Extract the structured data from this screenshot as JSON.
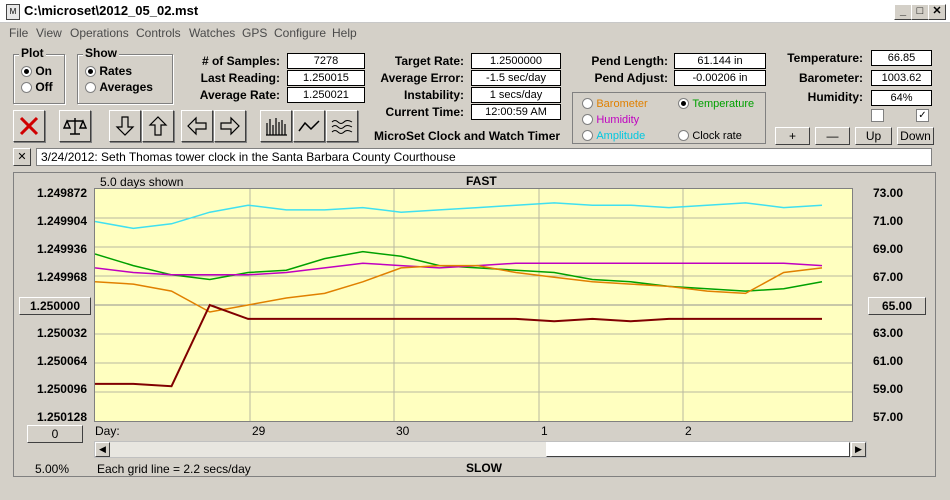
{
  "window": {
    "title": "C:\\microset\\2012_05_02.mst",
    "app_icon": "M",
    "min_label": "_",
    "max_label": "□",
    "close_label": "✕"
  },
  "menu": [
    "File",
    "View",
    "Operations",
    "Controls",
    "Watches",
    "GPS",
    "Configure",
    "Help"
  ],
  "plot": {
    "label": "Plot",
    "on": "On",
    "off": "Off",
    "selected": "On"
  },
  "show": {
    "label": "Show",
    "rates": "Rates",
    "averages": "Averages",
    "selected": "Rates"
  },
  "stats": {
    "samples_label": "# of Samples:",
    "samples": "7278",
    "last_label": "Last Reading:",
    "last": "1.250015",
    "avg_label": "Average Rate:",
    "avg": "1.250021",
    "target_label": "Target Rate:",
    "target": "1.2500000",
    "avgerr_label": "Average Error:",
    "avgerr": "-1.5 sec/day",
    "instab_label": "Instability:",
    "instab": "1 secs/day",
    "time_label": "Current Time:",
    "time": "12:00:59 AM",
    "pendlen_label": "Pend Length:",
    "pendlen": "61.144 in",
    "pendadj_label": "Pend Adjust:",
    "pendadj": "-0.00206 in",
    "temp_label": "Temperature:",
    "temp": "66.85",
    "baro_label": "Barometer:",
    "baro": "1003.62",
    "hum_label": "Humidity:",
    "hum": "64%"
  },
  "app_title": "MicroSet Clock and Watch Timer",
  "sensors": {
    "barometer": "Barometer",
    "temperature": "Temperature",
    "humidity": "Humidity",
    "amplitude": "Amplitude",
    "clockrate": "Clock rate",
    "selected": "Temperature",
    "colors": {
      "barometer": "#e08000",
      "temperature": "#00a000",
      "humidity": "#c000c0",
      "amplitude": "#00d0e0",
      "clockrate": "#000000"
    }
  },
  "scale_buttons": {
    "plus": "+",
    "minus": "—",
    "up": "Up",
    "down": "Down"
  },
  "notes": {
    "close": "✕",
    "text": "3/24/2012: Seth Thomas tower clock in the Santa Barbara County Courthouse"
  },
  "chart_labels": {
    "days_shown": "5.0 days shown",
    "fast": "FAST",
    "slow": "SLOW",
    "grid_note": "Each grid line = 2.2 secs/day",
    "pct": "5.00%",
    "center_left": "1.250000",
    "center_right": "65.00",
    "zero_btn": "0",
    "day_label": "Day:"
  },
  "chart_data": {
    "type": "line",
    "left_axis": [
      "1.249872",
      "1.249904",
      "1.249936",
      "1.249968",
      "1.250000",
      "1.250032",
      "1.250064",
      "1.250096",
      "1.250128"
    ],
    "right_axis": [
      "73.00",
      "71.00",
      "69.00",
      "67.00",
      "65.00",
      "63.00",
      "61.00",
      "59.00",
      "57.00"
    ],
    "x_ticks": [
      "29",
      "30",
      "1",
      "2"
    ],
    "xlim_days": [
      0,
      5
    ],
    "series": [
      {
        "name": "Amplitude",
        "color": "#40e0f0",
        "values": [
          0.14,
          0.17,
          0.15,
          0.1,
          0.07,
          0.09,
          0.09,
          0.08,
          0.1,
          0.09,
          0.08,
          0.07,
          0.06,
          0.07,
          0.07,
          0.08,
          0.07,
          0.06,
          0.08,
          0.07
        ]
      },
      {
        "name": "Temperature",
        "color": "#00a000",
        "values": [
          0.28,
          0.33,
          0.37,
          0.39,
          0.36,
          0.35,
          0.3,
          0.27,
          0.29,
          0.33,
          0.34,
          0.35,
          0.36,
          0.39,
          0.4,
          0.42,
          0.43,
          0.44,
          0.43,
          0.4
        ]
      },
      {
        "name": "Humidity",
        "color": "#c000c0",
        "values": [
          0.34,
          0.36,
          0.37,
          0.37,
          0.37,
          0.36,
          0.34,
          0.32,
          0.33,
          0.34,
          0.33,
          0.32,
          0.32,
          0.32,
          0.32,
          0.32,
          0.32,
          0.32,
          0.32,
          0.33
        ]
      },
      {
        "name": "Barometer",
        "color": "#e08000",
        "values": [
          0.4,
          0.41,
          0.44,
          0.53,
          0.5,
          0.47,
          0.45,
          0.4,
          0.34,
          0.33,
          0.33,
          0.36,
          0.38,
          0.4,
          0.41,
          0.42,
          0.44,
          0.45,
          0.36,
          0.34
        ]
      },
      {
        "name": "Clock rate",
        "color": "#800000",
        "values": [
          0.84,
          0.84,
          0.85,
          0.5,
          0.56,
          0.56,
          0.56,
          0.56,
          0.56,
          0.56,
          0.56,
          0.56,
          0.57,
          0.56,
          0.57,
          0.56,
          0.56,
          0.56,
          0.56,
          0.56
        ]
      }
    ]
  },
  "checkboxes": {
    "left": false,
    "right": true,
    "right_mark": "✓"
  }
}
